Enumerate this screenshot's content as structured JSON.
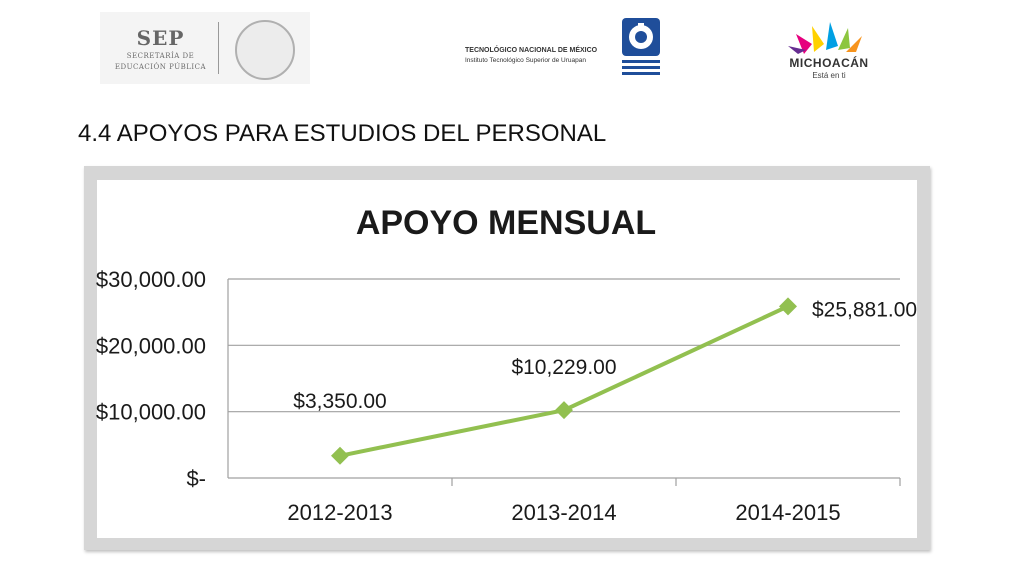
{
  "header": {
    "sep_big": "SEP",
    "sep_line1": "SECRETARÍA DE",
    "sep_line2": "EDUCACIÓN PÚBLICA",
    "tec_line1": "TECNOLÓGICO NACIONAL DE MÉXICO",
    "tec_line2": "Instituto Tecnológico Superior de Uruapan",
    "mich_name": "MICHOACÁN",
    "mich_tag": "Está en ti"
  },
  "slide": {
    "title": "4.4 APOYOS PARA ESTUDIOS DEL PERSONAL"
  },
  "colors": {
    "series": "#92c050",
    "grid": "#a0a0a0",
    "frame": "#d6d6d6"
  },
  "chart_data": {
    "type": "line",
    "title": "APOYO MENSUAL",
    "categories": [
      "2012-2013",
      "2013-2014",
      "2014-2015"
    ],
    "series": [
      {
        "values": [
          3350,
          10229,
          25881
        ],
        "labels": [
          "$3,350.00",
          "$10,229.00",
          "$25,881.00"
        ]
      }
    ],
    "ylim": [
      0,
      30000
    ],
    "yticks": [
      0,
      10000,
      20000,
      30000
    ],
    "ytick_labels": [
      "$-",
      "$10,000.00",
      "$20,000.00",
      "$30,000.00"
    ],
    "grid": true,
    "legend": "none",
    "marker": "diamond"
  }
}
